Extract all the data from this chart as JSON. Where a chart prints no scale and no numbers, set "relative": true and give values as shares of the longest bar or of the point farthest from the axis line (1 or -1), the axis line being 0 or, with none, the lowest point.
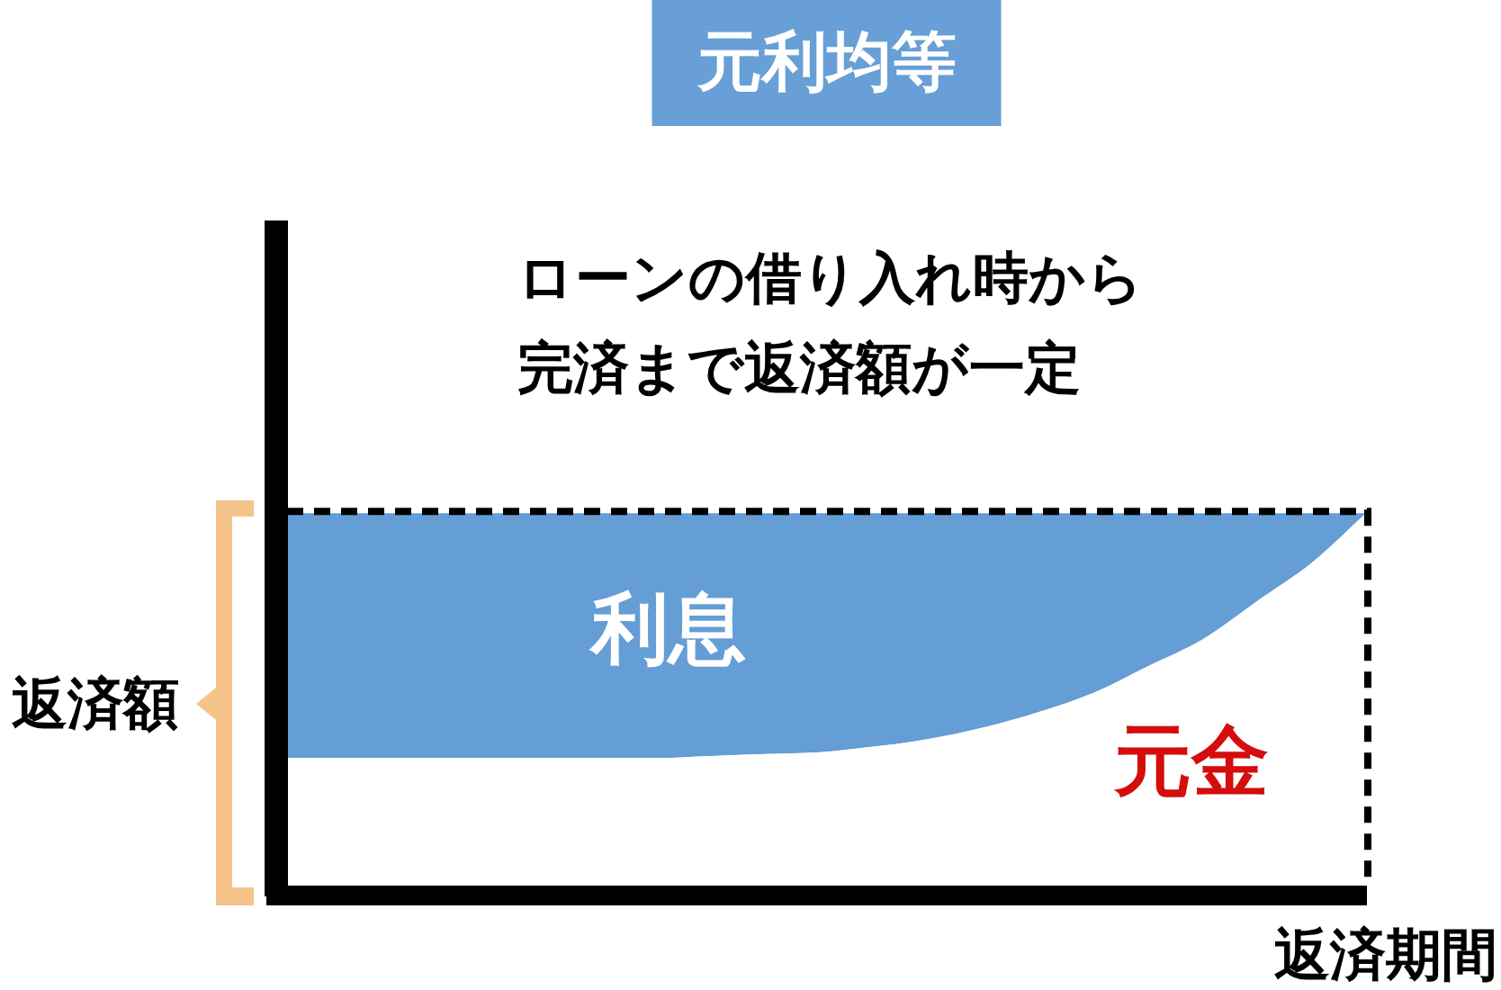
{
  "chart_data": {
    "type": "area",
    "title": "元利均等",
    "xlabel": "返済期間",
    "ylabel": "返済額",
    "annotations": [
      "ローンの借り入れ時から完済まで返済額が一定"
    ],
    "relative": true,
    "stacked": true,
    "categories": [
      null,
      null,
      null,
      null,
      null,
      null,
      null,
      null,
      null,
      null,
      null,
      null,
      null,
      null,
      null,
      null,
      null,
      null,
      null,
      null,
      null
    ],
    "series": [
      {
        "name": "元金",
        "color": "#ffffff",
        "values": [
          0.36,
          0.36,
          0.36,
          0.36,
          0.36,
          0.36,
          0.36,
          0.36,
          0.365,
          0.37,
          0.375,
          0.39,
          0.41,
          0.44,
          0.48,
          0.53,
          0.6,
          0.67,
          0.77,
          0.87,
          1.0
        ]
      },
      {
        "name": "利息",
        "color": "#659dd5",
        "values": [
          0.64,
          0.64,
          0.64,
          0.64,
          0.64,
          0.64,
          0.64,
          0.64,
          0.635,
          0.63,
          0.625,
          0.61,
          0.59,
          0.56,
          0.52,
          0.47,
          0.4,
          0.33,
          0.23,
          0.13,
          0.0
        ]
      }
    ],
    "ref_lines": [
      {
        "axis": "y",
        "value": 1,
        "line_style": "dashed",
        "color": "#000000"
      }
    ]
  }
}
